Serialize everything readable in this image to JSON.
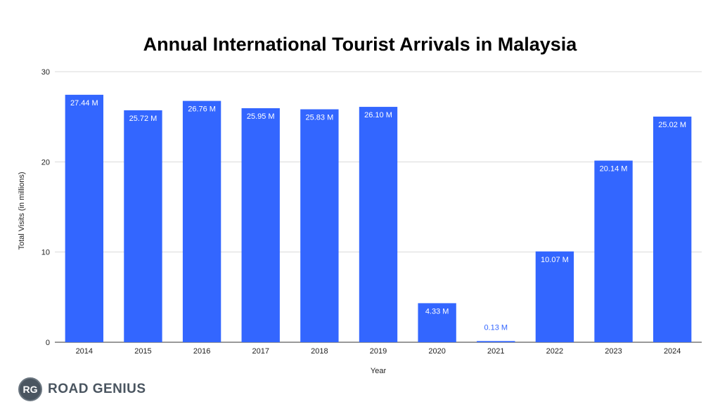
{
  "chart_data": {
    "type": "bar",
    "title": "Annual International Tourist Arrivals in Malaysia",
    "xlabel": "Year",
    "ylabel": "Total Visits (in millions)",
    "categories": [
      "2014",
      "2015",
      "2016",
      "2017",
      "2018",
      "2019",
      "2020",
      "2021",
      "2022",
      "2023",
      "2024"
    ],
    "values": [
      27.44,
      25.72,
      26.76,
      25.95,
      25.83,
      26.1,
      4.33,
      0.13,
      10.07,
      20.14,
      25.02
    ],
    "data_labels": [
      "27.44 M",
      "25.72 M",
      "26.76 M",
      "25.95 M",
      "25.83 M",
      "26.10 M",
      "4.33 M",
      "0.13 M",
      "10.07 M",
      "20.14 M",
      "25.02 M"
    ],
    "ylim": [
      0,
      30
    ],
    "yticks": [
      0,
      10,
      20,
      30
    ],
    "grid": true,
    "legend": "none",
    "bar_color": "#3366ff"
  },
  "brand": {
    "logo_text": "RG",
    "name": "ROAD GENIUS"
  }
}
